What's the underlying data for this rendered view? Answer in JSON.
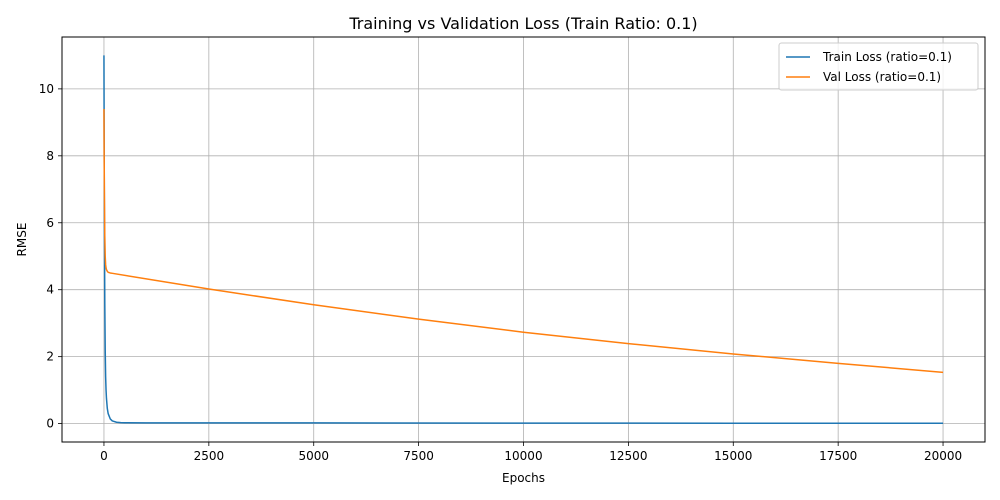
{
  "chart_data": {
    "type": "line",
    "title": "Training vs Validation Loss (Train Ratio: 0.1)",
    "xlabel": "Epochs",
    "ylabel": "RMSE",
    "xlim": [
      -1000,
      21000
    ],
    "ylim": [
      -0.55,
      11.55
    ],
    "xticks": [
      0,
      2500,
      5000,
      7500,
      10000,
      12500,
      15000,
      17500,
      20000
    ],
    "yticks": [
      0,
      2,
      4,
      6,
      8,
      10
    ],
    "grid": true,
    "legend_position": "top-right",
    "series": [
      {
        "name": "Train Loss (ratio=0.1)",
        "color": "#1f77b4",
        "x": [
          0,
          5,
          10,
          20,
          30,
          40,
          50,
          60,
          80,
          100,
          150,
          200,
          300,
          400,
          500,
          1000,
          2500,
          5000,
          10000,
          15000,
          20000
        ],
        "y": [
          11.0,
          8.5,
          6.2,
          3.6,
          2.2,
          1.4,
          1.0,
          0.75,
          0.45,
          0.3,
          0.14,
          0.08,
          0.04,
          0.03,
          0.025,
          0.02,
          0.02,
          0.02,
          0.015,
          0.012,
          0.01
        ]
      },
      {
        "name": "Val Loss (ratio=0.1)",
        "color": "#ff7f0e",
        "x": [
          0,
          5,
          10,
          20,
          30,
          40,
          50,
          60,
          80,
          100,
          150,
          200,
          2500,
          5000,
          7500,
          10000,
          12500,
          15000,
          17500,
          20000
        ],
        "y": [
          9.4,
          8.0,
          7.0,
          5.6,
          5.0,
          4.75,
          4.65,
          4.6,
          4.55,
          4.52,
          4.5,
          4.49,
          4.02,
          3.55,
          3.12,
          2.73,
          2.39,
          2.08,
          1.8,
          1.53
        ]
      }
    ]
  }
}
